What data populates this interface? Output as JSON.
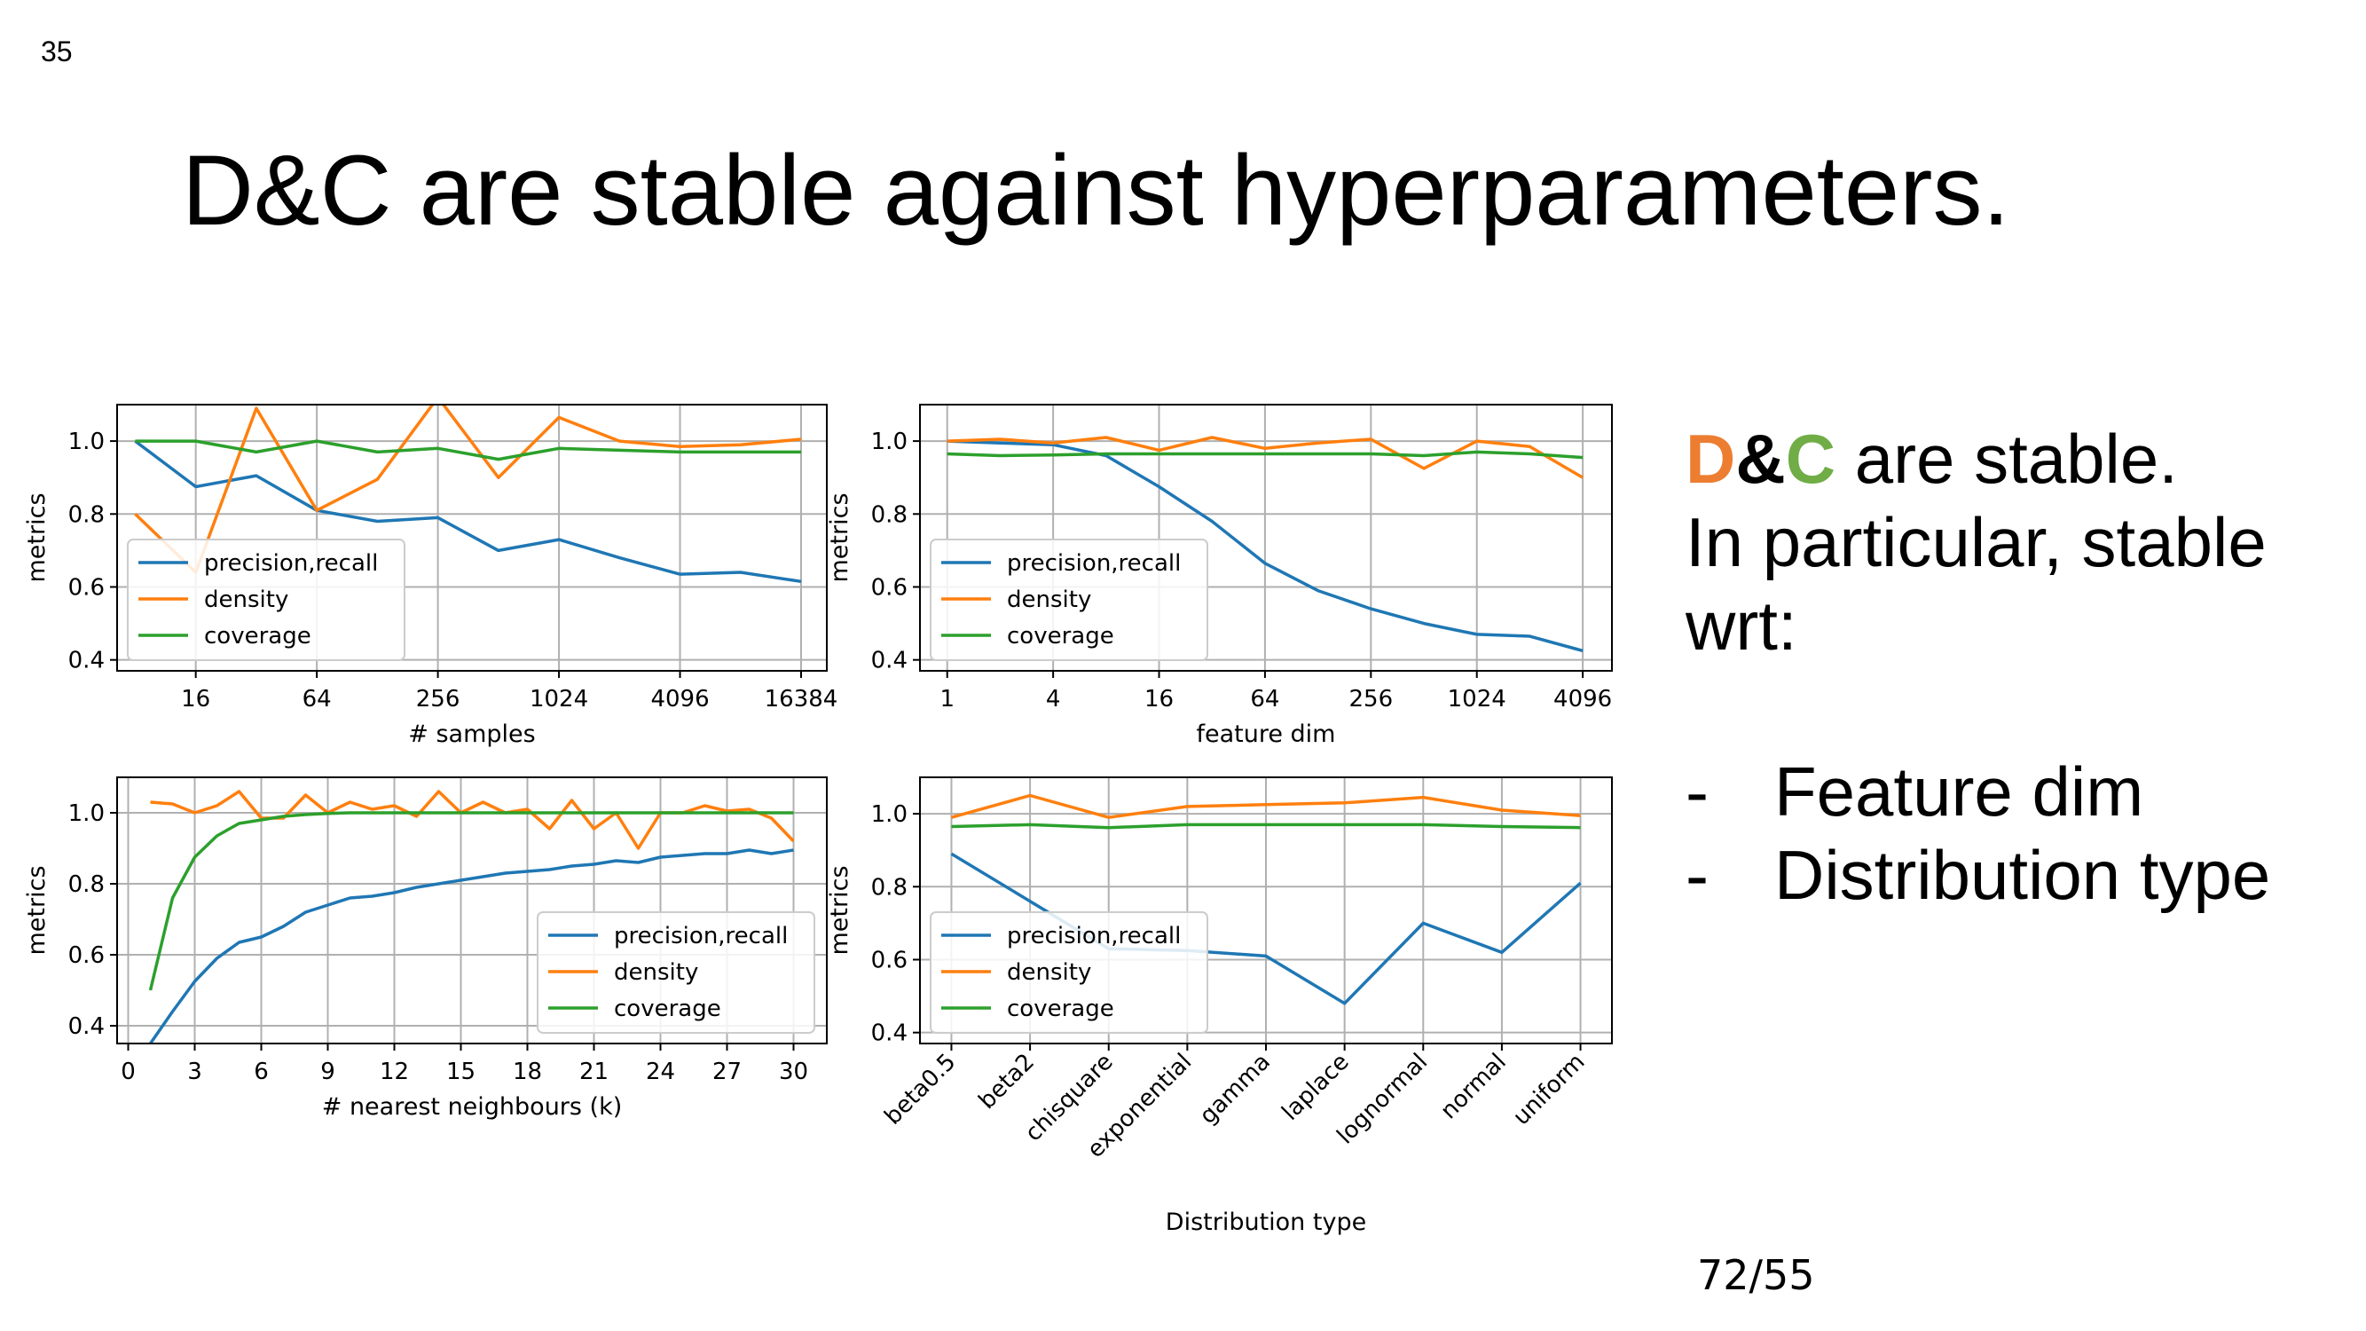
{
  "slide": {
    "number": "35",
    "title": "D&C are stable against hyperparameters.",
    "side": {
      "d": "D",
      "amp": "&",
      "c": "C",
      "line1_rest": " are stable.",
      "line2": "In particular, stable",
      "line3": "wrt:",
      "bullet_symbol": "-",
      "bullets": [
        "Feature dim",
        "Distribution type"
      ]
    },
    "footer": "72/55"
  },
  "colors": {
    "precision_recall": "#1f77b4",
    "density": "#ff7f0e",
    "coverage": "#2ca02c"
  },
  "chart_data": [
    {
      "type": "line",
      "xlabel": "# samples",
      "ylabel": "metrics",
      "x_scale": "log2",
      "xlim": [
        6.5,
        22000
      ],
      "ylim": [
        0.37,
        1.1
      ],
      "xticks": [
        16,
        64,
        256,
        1024,
        4096,
        16384
      ],
      "xtick_labels": [
        "16",
        "64",
        "256",
        "1024",
        "4096",
        "16384"
      ],
      "yticks": [
        0.4,
        0.6,
        0.8,
        1.0
      ],
      "ytick_labels": [
        "0.4",
        "0.6",
        "0.8",
        "1.0"
      ],
      "grid": true,
      "legend_position": "lower-left",
      "x": [
        8,
        16,
        32,
        64,
        128,
        256,
        512,
        1024,
        2048,
        4096,
        8192,
        16384
      ],
      "series": [
        {
          "name": "precision,recall",
          "values": [
            1.0,
            0.875,
            0.905,
            0.81,
            0.78,
            0.79,
            0.7,
            0.73,
            0.68,
            0.635,
            0.64,
            0.615
          ]
        },
        {
          "name": "density",
          "values": [
            0.8,
            0.64,
            1.09,
            0.81,
            0.895,
            1.12,
            0.9,
            1.065,
            1.0,
            0.985,
            0.99,
            1.005
          ]
        },
        {
          "name": "coverage",
          "values": [
            1.0,
            1.0,
            0.97,
            1.0,
            0.97,
            0.98,
            0.95,
            0.98,
            0.975,
            0.97,
            0.97,
            0.97
          ]
        }
      ]
    },
    {
      "type": "line",
      "xlabel": "feature dim",
      "ylabel": "metrics",
      "x_scale": "log2",
      "xlim": [
        0.7,
        6000
      ],
      "ylim": [
        0.37,
        1.1
      ],
      "xticks": [
        1,
        4,
        16,
        64,
        256,
        1024,
        4096
      ],
      "xtick_labels": [
        "1",
        "4",
        "16",
        "64",
        "256",
        "1024",
        "4096"
      ],
      "yticks": [
        0.4,
        0.6,
        0.8,
        1.0
      ],
      "ytick_labels": [
        "0.4",
        "0.6",
        "0.8",
        "1.0"
      ],
      "grid": true,
      "legend_position": "lower-left",
      "x": [
        1,
        2,
        4,
        8,
        16,
        32,
        64,
        128,
        256,
        512,
        1024,
        2048,
        4096
      ],
      "series": [
        {
          "name": "precision,recall",
          "values": [
            1.0,
            0.995,
            0.99,
            0.96,
            0.875,
            0.78,
            0.665,
            0.59,
            0.54,
            0.5,
            0.47,
            0.465,
            0.425
          ]
        },
        {
          "name": "density",
          "values": [
            1.0,
            1.005,
            0.995,
            1.01,
            0.975,
            1.01,
            0.98,
            0.995,
            1.005,
            0.925,
            1.0,
            0.985,
            0.9
          ]
        },
        {
          "name": "coverage",
          "values": [
            0.965,
            0.96,
            0.962,
            0.965,
            0.965,
            0.965,
            0.965,
            0.965,
            0.965,
            0.96,
            0.97,
            0.965,
            0.955
          ]
        }
      ]
    },
    {
      "type": "line",
      "xlabel": "# nearest neighbours (k)",
      "ylabel": "metrics",
      "x_scale": "linear",
      "xlim": [
        -0.5,
        31.5
      ],
      "ylim": [
        0.35,
        1.1
      ],
      "xticks": [
        0,
        3,
        6,
        9,
        12,
        15,
        18,
        21,
        24,
        27,
        30
      ],
      "xtick_labels": [
        "0",
        "3",
        "6",
        "9",
        "12",
        "15",
        "18",
        "21",
        "24",
        "27",
        "30"
      ],
      "yticks": [
        0.4,
        0.6,
        0.8,
        1.0
      ],
      "ytick_labels": [
        "0.4",
        "0.6",
        "0.8",
        "1.0"
      ],
      "grid": true,
      "legend_position": "lower-right",
      "x": [
        1,
        2,
        3,
        4,
        5,
        6,
        7,
        8,
        9,
        10,
        11,
        12,
        13,
        14,
        15,
        16,
        17,
        18,
        19,
        20,
        21,
        22,
        23,
        24,
        25,
        26,
        27,
        28,
        29,
        30
      ],
      "series": [
        {
          "name": "precision,recall",
          "values": [
            0.35,
            0.44,
            0.525,
            0.59,
            0.635,
            0.65,
            0.68,
            0.72,
            0.74,
            0.76,
            0.765,
            0.775,
            0.79,
            0.8,
            0.81,
            0.82,
            0.83,
            0.835,
            0.84,
            0.85,
            0.855,
            0.865,
            0.86,
            0.875,
            0.88,
            0.885,
            0.885,
            0.895,
            0.885,
            0.895
          ]
        },
        {
          "name": "density",
          "values": [
            1.03,
            1.025,
            1.0,
            1.02,
            1.06,
            0.985,
            0.985,
            1.05,
            1.0,
            1.03,
            1.01,
            1.02,
            0.99,
            1.06,
            1.0,
            1.03,
            1.0,
            1.01,
            0.955,
            1.035,
            0.955,
            1.0,
            0.9,
            1.0,
            1.0,
            1.02,
            1.005,
            1.01,
            0.985,
            0.92
          ]
        },
        {
          "name": "coverage",
          "values": [
            0.5,
            0.76,
            0.875,
            0.935,
            0.97,
            0.98,
            0.99,
            0.995,
            0.998,
            1.0,
            1.0,
            1.0,
            1.0,
            1.0,
            1.0,
            1.0,
            1.0,
            1.0,
            1.0,
            1.0,
            1.0,
            1.0,
            1.0,
            1.0,
            1.0,
            1.0,
            1.0,
            1.0,
            1.0,
            1.0
          ]
        }
      ]
    },
    {
      "type": "line",
      "xlabel": "Distribution type",
      "ylabel": "metrics",
      "x_scale": "categorical",
      "categories": [
        "beta0.5",
        "beta2",
        "chisquare",
        "exponential",
        "gamma",
        "laplace",
        "lognormal",
        "normal",
        "uniform"
      ],
      "ylim": [
        0.37,
        1.1
      ],
      "yticks": [
        0.4,
        0.6,
        0.8,
        1.0
      ],
      "ytick_labels": [
        "0.4",
        "0.6",
        "0.8",
        "1.0"
      ],
      "grid": true,
      "legend_position": "lower-left",
      "series": [
        {
          "name": "precision,recall",
          "values": [
            0.89,
            0.76,
            0.63,
            0.625,
            0.61,
            0.48,
            0.7,
            0.62,
            0.81
          ]
        },
        {
          "name": "density",
          "values": [
            0.99,
            1.05,
            0.99,
            1.02,
            1.025,
            1.03,
            1.045,
            1.01,
            0.995
          ]
        },
        {
          "name": "coverage",
          "values": [
            0.965,
            0.97,
            0.962,
            0.97,
            0.97,
            0.97,
            0.97,
            0.965,
            0.962
          ]
        }
      ]
    }
  ]
}
